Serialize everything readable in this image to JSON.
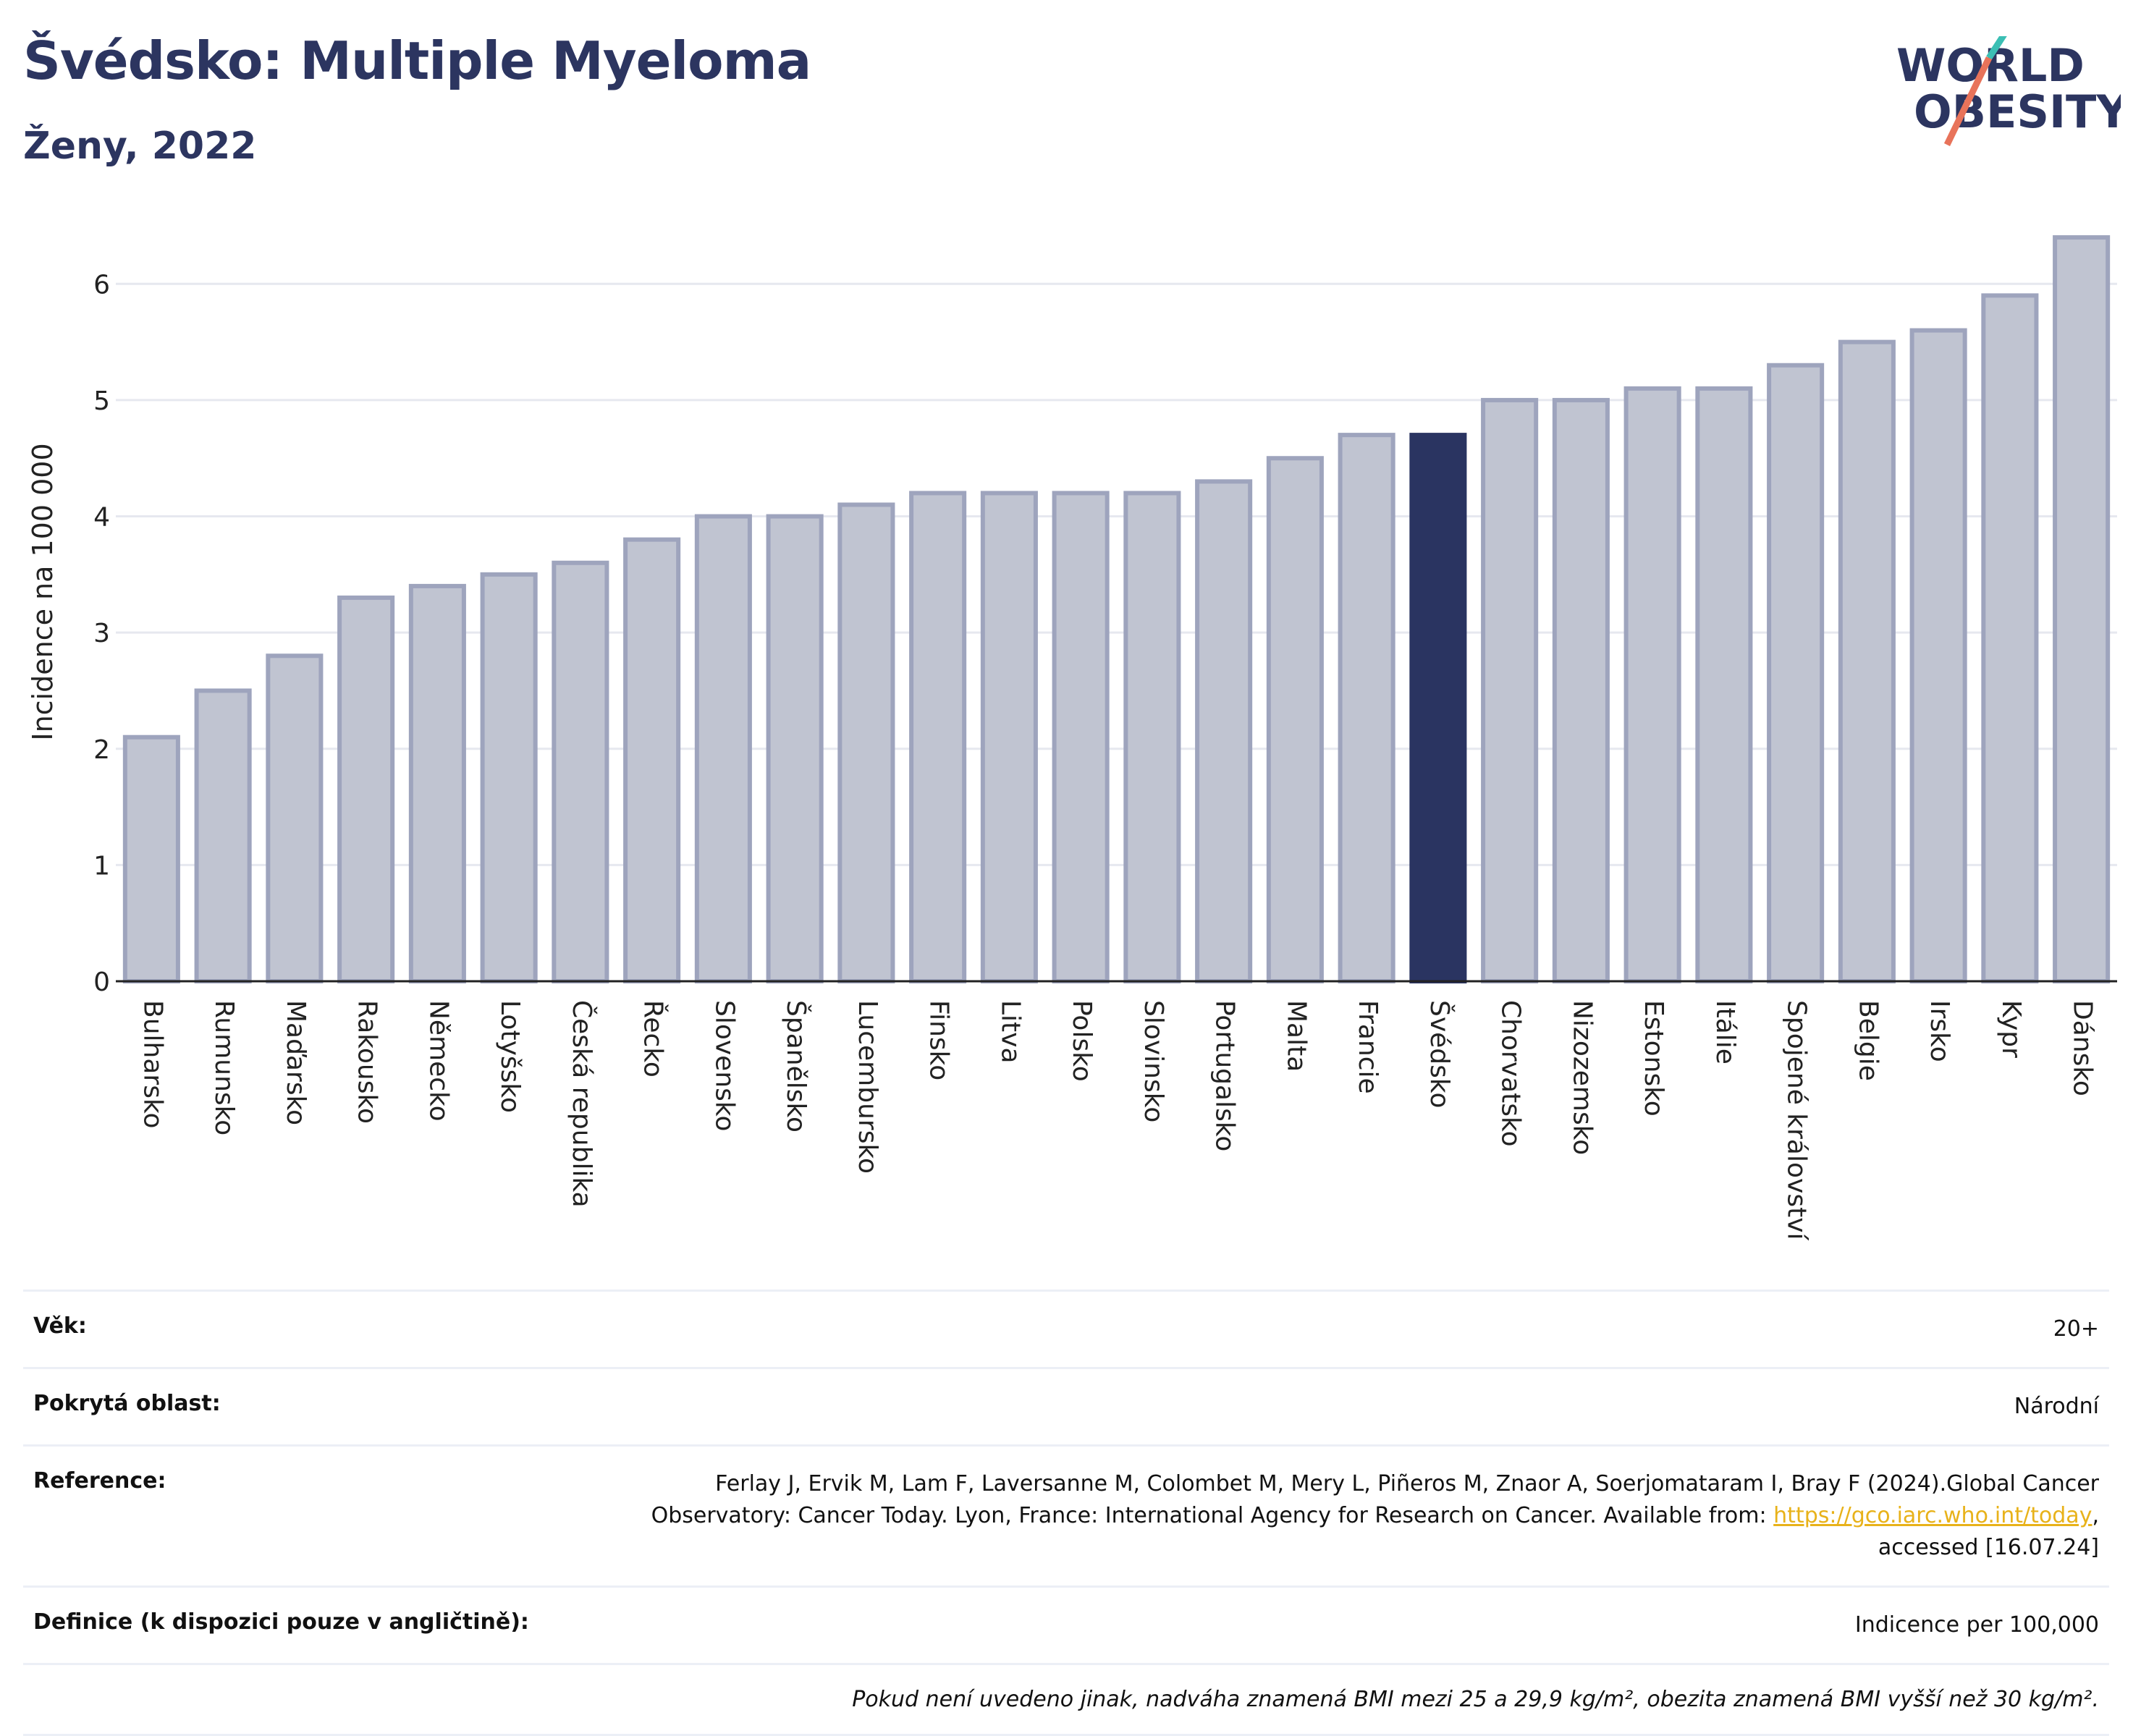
{
  "header": {
    "title": "Švédsko: Multiple Myeloma",
    "subtitle": "Ženy, 2022"
  },
  "logo": {
    "line1": "WORLD",
    "line2": "OBESITY"
  },
  "colors": {
    "highlight": "#2a3461",
    "bar_fill": "#c0c4d1",
    "bar_stroke": "#9ea4bd",
    "grid": "#e6e8ef"
  },
  "chart_data": {
    "type": "bar",
    "ylabel": "Incidence na 100 000",
    "ylim": [
      0,
      6.5
    ],
    "yticks": [
      0,
      1,
      2,
      3,
      4,
      5,
      6
    ],
    "grid": true,
    "highlight": "Švédsko",
    "categories": [
      "Bulharsko",
      "Rumunsko",
      "Maďarsko",
      "Rakousko",
      "Německo",
      "Lotyšsko",
      "Česká republika",
      "Řecko",
      "Slovensko",
      "Španělsko",
      "Lucembursko",
      "Finsko",
      "Litva",
      "Polsko",
      "Slovinsko",
      "Portugalsko",
      "Malta",
      "Francie",
      "Švédsko",
      "Chorvatsko",
      "Nizozemsko",
      "Estonsko",
      "Itálie",
      "Spojené království",
      "Belgie",
      "Irsko",
      "Kypr",
      "Dánsko"
    ],
    "values": [
      2.1,
      2.5,
      2.8,
      3.3,
      3.4,
      3.5,
      3.6,
      3.8,
      4.0,
      4.0,
      4.1,
      4.2,
      4.2,
      4.2,
      4.2,
      4.3,
      4.5,
      4.7,
      4.7,
      5.0,
      5.0,
      5.1,
      5.1,
      5.3,
      5.5,
      5.6,
      5.9,
      6.4
    ]
  },
  "meta": {
    "age_label": "Věk:",
    "age_value": "20+",
    "area_label": "Pokrytá oblast:",
    "area_value": "Národní",
    "ref_label": "Reference:",
    "ref_text_1": "Ferlay J, Ervik M, Lam F, Laversanne M, Colombet M, Mery L, Piñeros M, Znaor A, Soerjomataram I, Bray F (2024).Global Cancer Observatory: Cancer Today. Lyon, France: International Agency for Research on Cancer. Available from: ",
    "ref_link": "https://gco.iarc.who.int/today",
    "ref_text_2": ", accessed [16.07.24]",
    "def_label": "Definice (k dispozici pouze v angličtině):",
    "def_value": "Indicence per 100,000",
    "note": "Pokud není uvedeno jinak, nadváha znamená BMI mezi 25 a 29,9 kg/m², obezita znamená BMI vyšší než 30 kg/m²."
  }
}
